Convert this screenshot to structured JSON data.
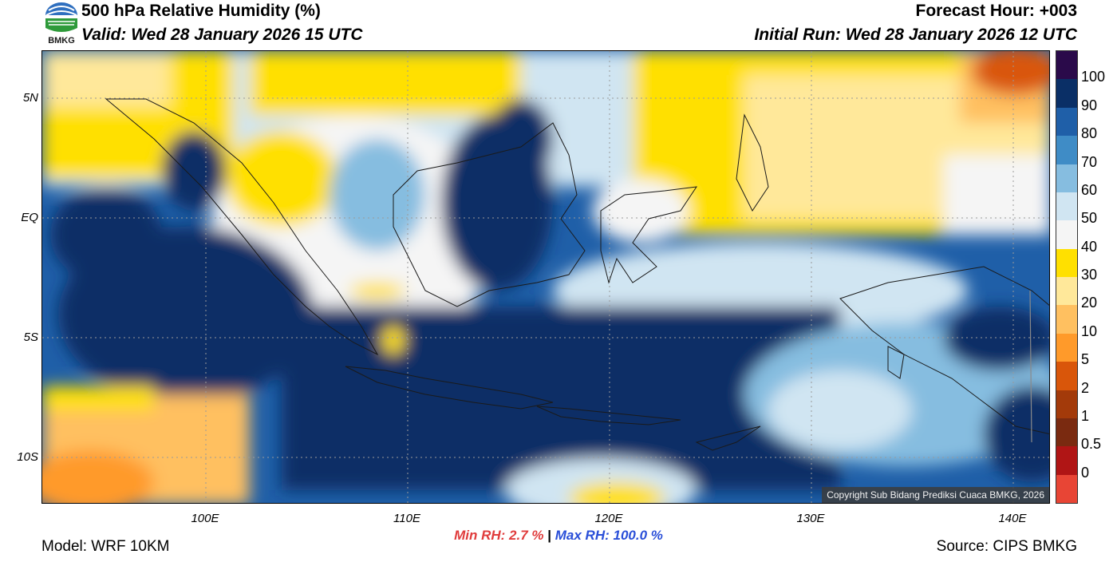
{
  "header": {
    "title": "500 hPa Relative Humidity (%)",
    "valid": "Valid: Wed 28 January 2026 15 UTC",
    "forecast_hour": "Forecast Hour: +003",
    "initial_run": "Initial Run: Wed 28 January 2026 12 UTC",
    "logo_text": "BMKG"
  },
  "map": {
    "copyright": "Copyright Sub Bidang Prediksi Cuaca BMKG, 2026",
    "lat_labels": [
      "5N",
      "EQ",
      "5S",
      "10S"
    ],
    "lon_labels": [
      "100E",
      "110E",
      "120E",
      "130E",
      "140E"
    ]
  },
  "colorbar": {
    "labels": [
      "100",
      "90",
      "80",
      "70",
      "60",
      "50",
      "40",
      "30",
      "20",
      "10",
      "5",
      "2",
      "1",
      "0.5",
      "0"
    ],
    "colors": [
      "#2a0a4a",
      "#0a2f66",
      "#1f5fa8",
      "#3f8cc6",
      "#86bde0",
      "#d0e5f2",
      "#f5f5f5",
      "#ffe000",
      "#ffe89a",
      "#ffc060",
      "#ff9a2a",
      "#d9560a",
      "#a33a0a",
      "#7a2a10",
      "#b01515",
      "#e84535"
    ]
  },
  "footer": {
    "min_label": "Min RH:",
    "min_value": "2.7 %",
    "separator": "|",
    "max_label": "Max RH:",
    "max_value": "100.0 %",
    "model": "Model: WRF 10KM",
    "source": "Source: CIPS BMKG"
  }
}
